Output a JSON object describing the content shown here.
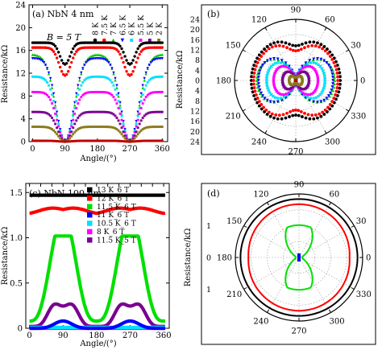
{
  "chart_data": [
    {
      "type": "scatter",
      "panel_label": "(a) NbN 4 nm",
      "annotation": "B = 5 T",
      "xlabel": "Angle/(°)",
      "ylabel": "Resistance/kΩ",
      "xlim": [
        -10,
        375
      ],
      "ylim": [
        0,
        24
      ],
      "xticks": [
        "0",
        "90",
        "180",
        "270",
        "360"
      ],
      "yticks": [
        "0",
        "4",
        "8",
        "12",
        "16",
        "20",
        "24"
      ],
      "legend_position": "top (vertical labels)",
      "series": [
        {
          "name": "8 K",
          "color": "#000000",
          "marker": "circle",
          "r_90": 17.3,
          "r_0": 17.4,
          "dip_depth": 3.8,
          "dip_width": 28
        },
        {
          "name": "7.5 K",
          "color": "#ff0000",
          "marker": "circle",
          "r_90": 16.5,
          "r_0": 16.5,
          "dip_depth": 4.9,
          "dip_width": 32
        },
        {
          "name": "7 K",
          "color": "#00c000",
          "marker": "triangle-up",
          "r_90": 15.3,
          "r_0": 15.3,
          "dip_depth": 15.3,
          "dip_width": 52
        },
        {
          "name": "6.5 K",
          "color": "#0000ff",
          "marker": "triangle-down",
          "r_90": 14.6,
          "r_0": 14.6,
          "dip_depth": 14.6,
          "dip_width": 48
        },
        {
          "name": "6 K",
          "color": "#00e0ff",
          "marker": "square",
          "r_90": 11.4,
          "r_0": 11.4,
          "dip_depth": 11.4,
          "dip_width": 45
        },
        {
          "name": "5.5 K",
          "color": "#ff00ff",
          "marker": "square",
          "r_90": 8.7,
          "r_0": 8.7,
          "dip_depth": 8.7,
          "dip_width": 42
        },
        {
          "name": "5 K",
          "color": "#7a0090",
          "marker": "square",
          "r_90": 5.2,
          "r_0": 5.2,
          "dip_depth": 5.2,
          "dip_width": 40
        },
        {
          "name": "2 K",
          "color": "#8a7a1a",
          "marker": "square",
          "r_90": 2.6,
          "r_0": 2.6,
          "dip_depth": 2.6,
          "dip_width": 38
        },
        {
          "name": "",
          "color": "#c00000",
          "marker": "square",
          "r_90": 0.15,
          "r_0": 0.15,
          "dip_depth": 0.15,
          "dip_width": 38
        }
      ]
    },
    {
      "type": "polar",
      "panel_label": "(b)",
      "ylabel": "Resistance/kΩ",
      "radial_ticks": [
        "24",
        "20",
        "16",
        "12",
        "8",
        "4",
        "0",
        "4",
        "8",
        "12",
        "16",
        "20",
        "24"
      ],
      "angle_ticks": [
        "0",
        "30",
        "60",
        "90",
        "120",
        "150",
        "180",
        "210",
        "240",
        "270",
        "300",
        "330"
      ],
      "rlim": [
        0,
        24
      ]
    },
    {
      "type": "line",
      "panel_label": "(c) NbN 100 nm",
      "xlabel": "Angle/(°)",
      "ylabel": "Resistance/kΩ",
      "xlim": [
        -10,
        375
      ],
      "ylim": [
        0,
        1.6
      ],
      "xticks": [
        "0",
        "30",
        "60",
        "90",
        "120",
        "150",
        "180",
        "210",
        "240",
        "270",
        "300",
        "330",
        "360"
      ],
      "xtick_labels_shown": [
        "0",
        "90",
        "180",
        "270",
        "360"
      ],
      "yticks": [
        "0",
        "0.5",
        "1.0",
        "1.5"
      ],
      "legend_position": "top-right",
      "series": [
        {
          "name": "13 K_6 T",
          "color": "#000000",
          "kind": "flat",
          "level": 1.47
        },
        {
          "name": "12 K_6 T",
          "color": "#ff0000",
          "kind": "wave",
          "level": 1.27,
          "amp": 0.07
        },
        {
          "name": "11.5 K_6 T",
          "color": "#00e000",
          "kind": "plateau",
          "base": 0.08,
          "top": 1.02
        },
        {
          "name": "11 K_6 T",
          "color": "#0000ff",
          "kind": "bump",
          "base": 0.0,
          "top": 0.08
        },
        {
          "name": "10.5 K_6 T",
          "color": "#00e0ff",
          "kind": "flat",
          "level": 0.01
        },
        {
          "name": "8 K_6 T",
          "color": "#ff00ff",
          "kind": "flat",
          "level": 0.0
        },
        {
          "name": "11.5 K_5 T",
          "color": "#7a0090",
          "kind": "double-bump",
          "base": 0.02,
          "top": 0.43
        }
      ]
    },
    {
      "type": "polar",
      "panel_label": "(d)",
      "ylabel": "Resistance/kΩ",
      "radial_ticks": [
        "1",
        "0",
        "1"
      ],
      "angle_ticks": [
        "0",
        "30",
        "60",
        "90",
        "120",
        "150",
        "180",
        "210",
        "240",
        "270",
        "300",
        "330"
      ],
      "rlim": [
        0,
        1.6
      ]
    }
  ]
}
